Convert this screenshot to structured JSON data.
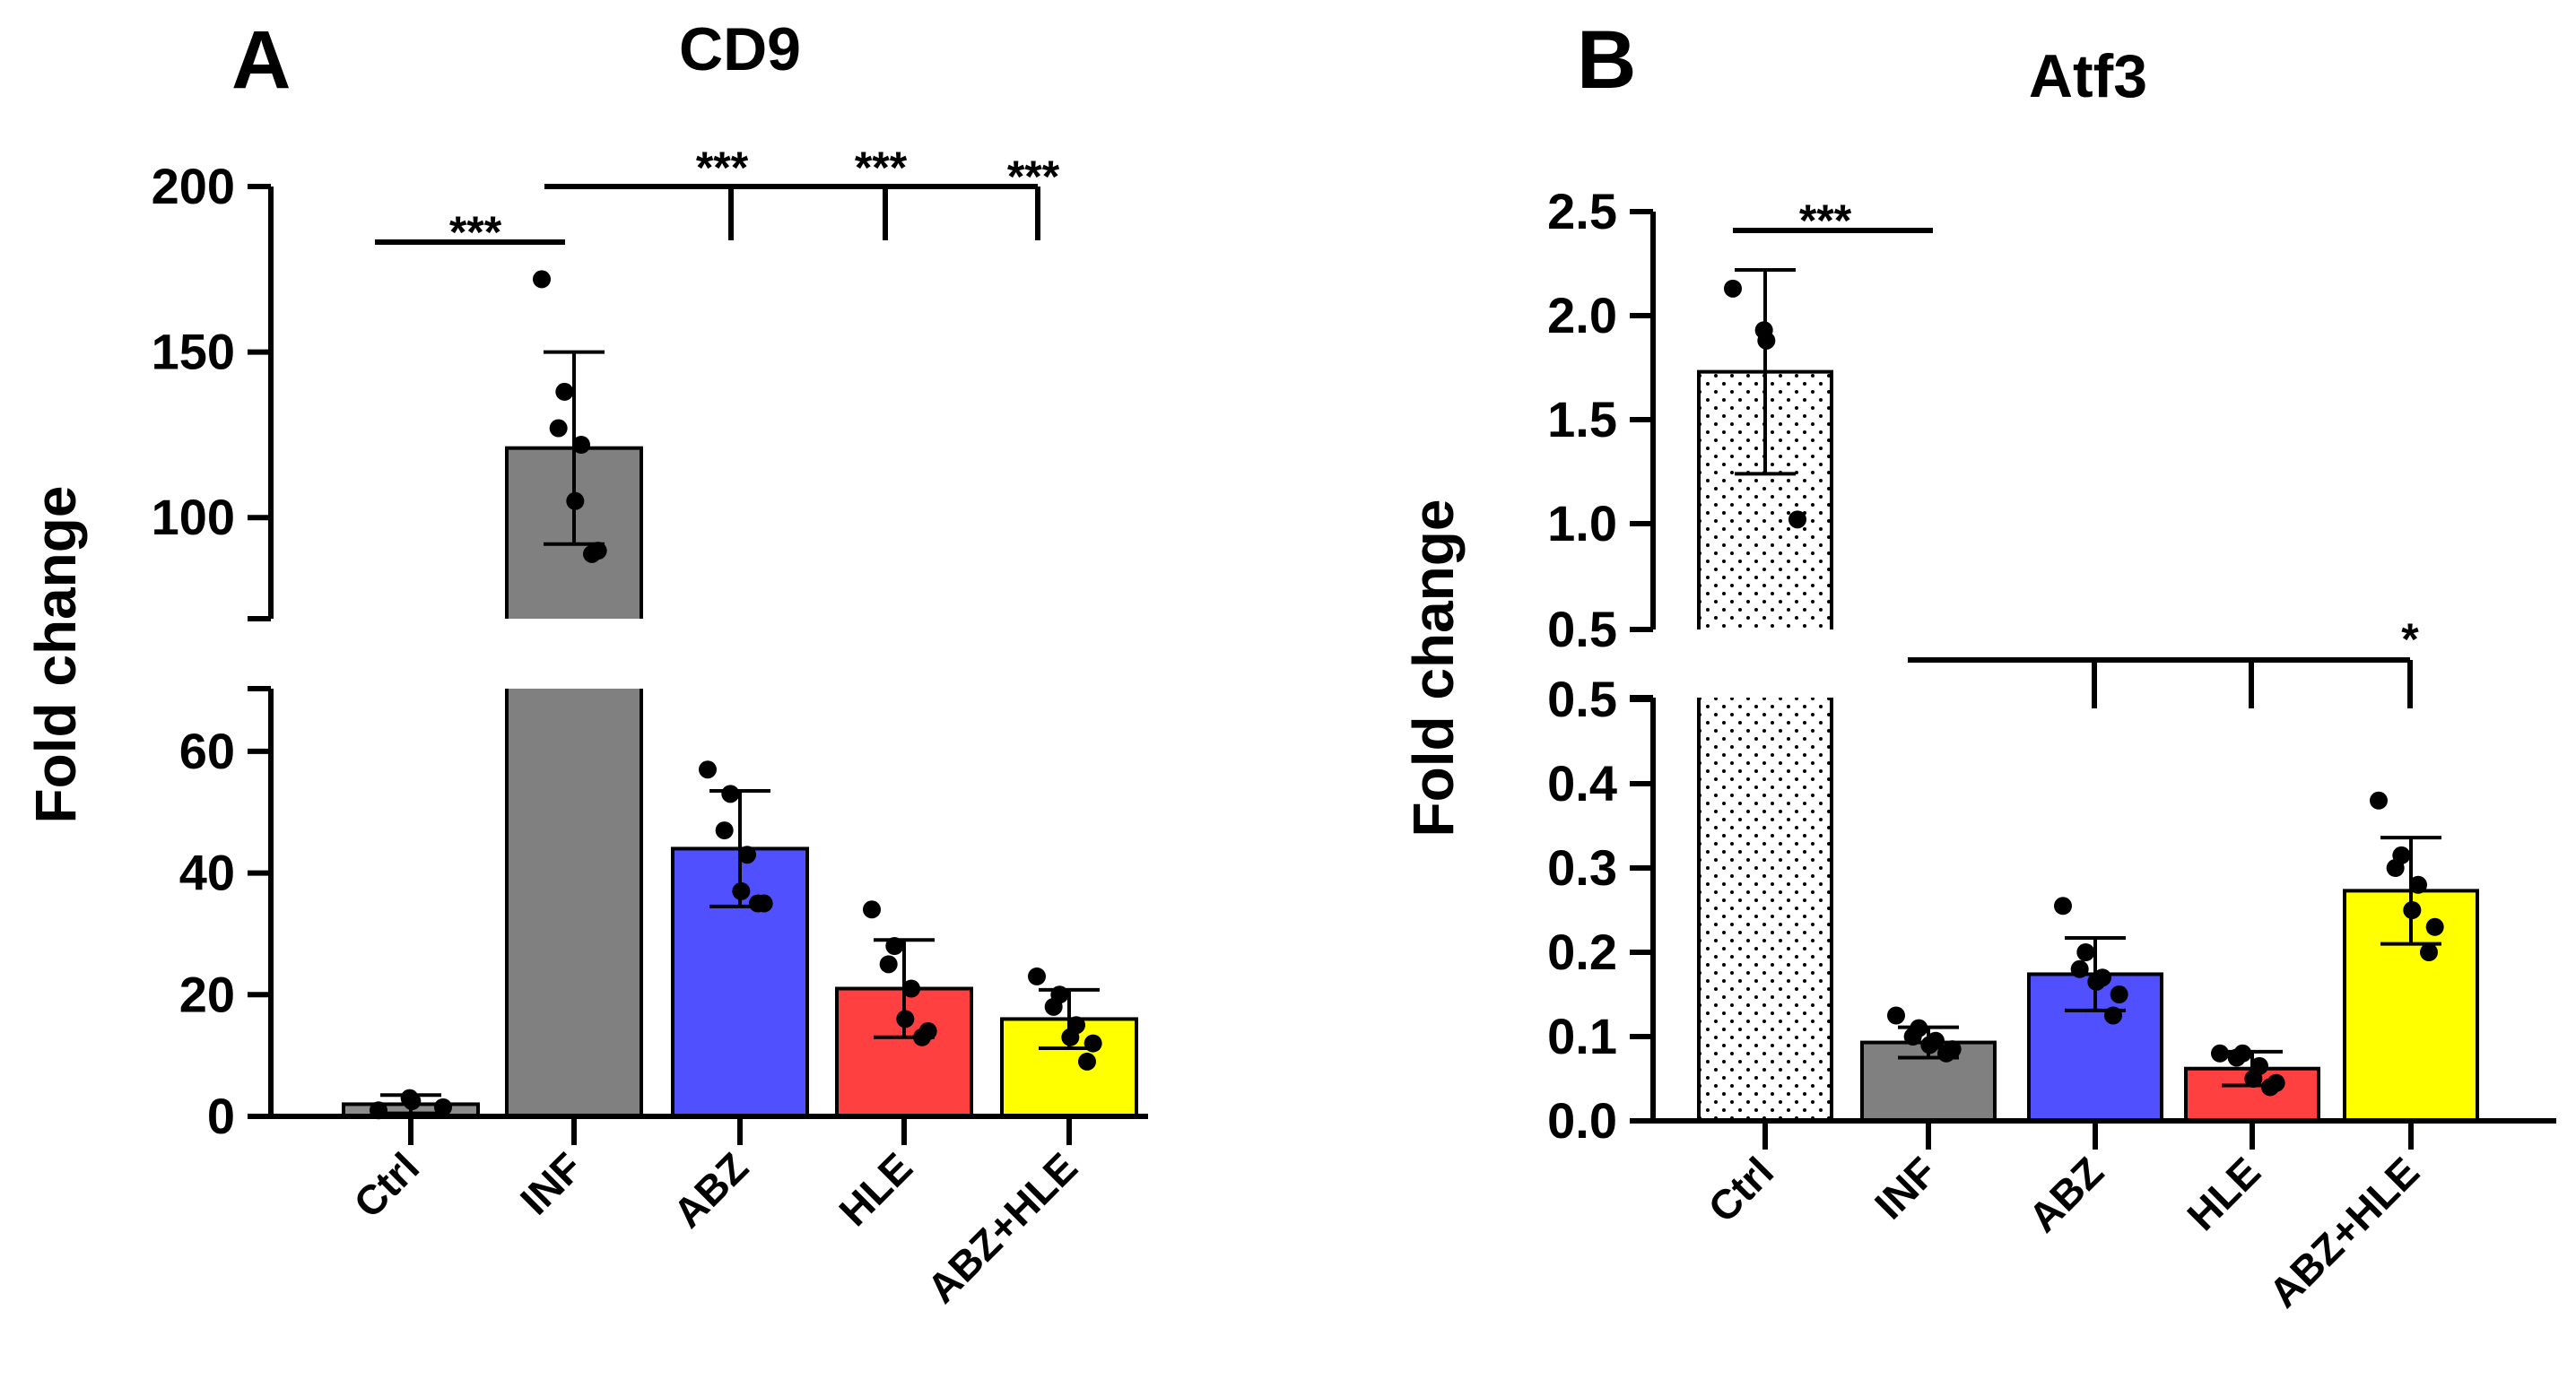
{
  "figure": {
    "colors": {
      "axis": "#000000",
      "Ctrl_A": "#8c8c8c",
      "INF": "#808080",
      "ABZ": "#5050ff",
      "HLE": "#ff4040",
      "ABZ+HLE": "#ffff00",
      "Ctrl_B": "#ffffff"
    }
  },
  "chart_data": [
    {
      "panel_label": "A",
      "type": "bar",
      "title": "CD9",
      "ylabel": "Fold change",
      "xlabel": "",
      "categories": [
        "Ctrl",
        "INF",
        "ABZ",
        "HLE",
        "ABZ+HLE"
      ],
      "values": [
        2,
        121,
        44,
        21,
        16
      ],
      "error_sd": [
        1.5,
        29,
        9.5,
        8,
        4.8
      ],
      "points": [
        [
          1,
          3,
          2.5,
          1.5
        ],
        [
          172,
          138,
          127,
          122,
          105,
          90,
          89
        ],
        [
          57,
          53,
          47,
          43,
          37,
          35,
          35
        ],
        [
          34,
          28,
          25,
          21,
          16,
          14,
          13
        ],
        [
          23,
          20,
          18,
          15,
          13,
          12,
          9
        ]
      ],
      "y_axis_break": {
        "lower_range": [
          0,
          70
        ],
        "upper_range": [
          70,
          200
        ],
        "lower_ticks": [
          "0",
          "20",
          "40",
          "60"
        ],
        "upper_ticks": [
          "100",
          "150",
          "200"
        ]
      },
      "significance": [
        {
          "label": "***",
          "from": "Ctrl",
          "to": "INF"
        },
        {
          "label": "***",
          "from": "INF",
          "to": "ABZ"
        },
        {
          "label": "***",
          "from": "INF",
          "to": "HLE"
        },
        {
          "label": "***",
          "from": "INF",
          "to": "ABZ+HLE"
        }
      ]
    },
    {
      "panel_label": "B",
      "type": "bar",
      "title": "Atf3",
      "ylabel": "Fold change",
      "xlabel": "",
      "categories": [
        "Ctrl",
        "INF",
        "ABZ",
        "HLE",
        "ABZ+HLE"
      ],
      "values": [
        1.73,
        0.093,
        0.174,
        0.062,
        0.273
      ],
      "error_sd": [
        0.49,
        0.018,
        0.043,
        0.02,
        0.063
      ],
      "points": [
        [
          2.13,
          1.93,
          1.88,
          1.02
        ],
        [
          0.125,
          0.11,
          0.1,
          0.095,
          0.09,
          0.085,
          0.08
        ],
        [
          0.255,
          0.2,
          0.18,
          0.17,
          0.165,
          0.15,
          0.125
        ],
        [
          0.08,
          0.08,
          0.075,
          0.065,
          0.05,
          0.045,
          0.04
        ],
        [
          0.38,
          0.315,
          0.3,
          0.28,
          0.25,
          0.23,
          0.2
        ]
      ],
      "y_axis_break": {
        "lower_range": [
          0,
          0.5
        ],
        "upper_range": [
          0.5,
          2.5
        ],
        "lower_ticks": [
          "0.0",
          "0.1",
          "0.2",
          "0.3",
          "0.4",
          "0.5"
        ],
        "upper_ticks": [
          "0.5",
          "1.0",
          "1.5",
          "2.0",
          "2.5"
        ]
      },
      "significance": [
        {
          "label": "***",
          "from": "Ctrl",
          "to": "INF"
        },
        {
          "label": "",
          "from": "INF",
          "to": "ABZ"
        },
        {
          "label": "",
          "from": "INF",
          "to": "HLE"
        },
        {
          "label": "*",
          "from": "INF",
          "to": "ABZ+HLE"
        }
      ]
    }
  ]
}
